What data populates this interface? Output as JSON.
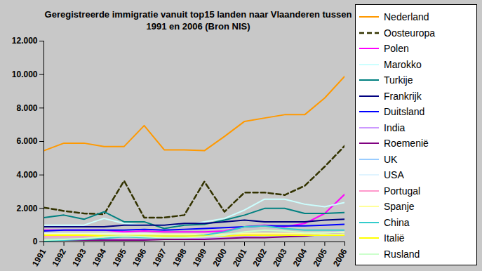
{
  "chart_data": {
    "type": "line",
    "title": "Geregistreerde immigratie vanuit top15 landen naar Vlaanderen tussen 1991 en 2006 (Bron NIS)",
    "x": [
      1991,
      1992,
      1993,
      1994,
      1995,
      1996,
      1997,
      1998,
      1999,
      2000,
      2001,
      2002,
      2003,
      2004,
      2005,
      2006
    ],
    "xlim": [
      1991,
      2006
    ],
    "xticks": [
      1991,
      1992,
      1993,
      1994,
      1995,
      1996,
      1997,
      1998,
      1999,
      2000,
      2001,
      2002,
      2003,
      2004,
      2005,
      2006
    ],
    "ylim": [
      0,
      12000
    ],
    "yticks": [
      0,
      {
        "value": 2000,
        "label": "2.000"
      },
      {
        "value": 4000,
        "label": "4.000"
      },
      {
        "value": 6000,
        "label": "6.000"
      },
      {
        "value": 8000,
        "label": "8.000"
      },
      {
        "value": 10000,
        "label": "10.000"
      },
      {
        "value": 12000,
        "label": "12.000"
      }
    ],
    "grid": false,
    "legend": "right",
    "series": [
      {
        "name": "Nederland",
        "color": "#ff9900",
        "line_style": "solid",
        "values": [
          5450,
          5900,
          5900,
          5700,
          5700,
          6950,
          5500,
          5500,
          5450,
          6300,
          7200,
          7400,
          7600,
          7600,
          8600,
          9900
        ]
      },
      {
        "name": "Oosteuropa",
        "color": "#333300",
        "line_style": "dashed",
        "values": [
          2050,
          1850,
          1700,
          1650,
          3650,
          1450,
          1450,
          1600,
          3600,
          1800,
          2950,
          2950,
          2800,
          3350,
          4500,
          5750
        ]
      },
      {
        "name": "Polen",
        "color": "#ff00ff",
        "line_style": "solid",
        "values": [
          700,
          700,
          700,
          700,
          600,
          650,
          600,
          600,
          600,
          650,
          900,
          1000,
          900,
          1100,
          1700,
          2850
        ]
      },
      {
        "name": "Marokko",
        "color": "#ccffff",
        "line_style": "solid",
        "values": [
          1000,
          1000,
          1000,
          1400,
          1100,
          1000,
          1000,
          1000,
          1200,
          1400,
          1900,
          2550,
          2550,
          2250,
          2100,
          2350
        ]
      },
      {
        "name": "Turkije",
        "color": "#008080",
        "line_style": "solid",
        "values": [
          1450,
          1600,
          1350,
          1800,
          1200,
          1200,
          800,
          1000,
          1050,
          1300,
          1600,
          2000,
          2000,
          1700,
          1700,
          1750
        ]
      },
      {
        "name": "Frankrijk",
        "color": "#000080",
        "line_style": "solid",
        "values": [
          900,
          900,
          900,
          900,
          1000,
          1000,
          1000,
          1100,
          1100,
          1200,
          1300,
          1200,
          1200,
          1200,
          1300,
          1350
        ]
      },
      {
        "name": "Duitsland",
        "color": "#0000ff",
        "line_style": "solid",
        "values": [
          650,
          700,
          700,
          700,
          700,
          750,
          700,
          750,
          800,
          850,
          900,
          950,
          950,
          950,
          1000,
          1050
        ]
      },
      {
        "name": "India",
        "color": "#cc99ff",
        "line_style": "solid",
        "values": [
          100,
          100,
          100,
          150,
          150,
          150,
          150,
          200,
          200,
          250,
          350,
          400,
          400,
          450,
          550,
          650
        ]
      },
      {
        "name": "Roemenië",
        "color": "#800080",
        "line_style": "solid",
        "values": [
          100,
          100,
          100,
          100,
          100,
          100,
          150,
          150,
          150,
          200,
          250,
          250,
          300,
          350,
          450,
          550
        ]
      },
      {
        "name": "UK",
        "color": "#99ccff",
        "line_style": "solid",
        "values": [
          400,
          400,
          400,
          400,
          400,
          400,
          400,
          400,
          400,
          450,
          450,
          450,
          500,
          500,
          550,
          550
        ]
      },
      {
        "name": "USA",
        "color": "#e0f4ff",
        "line_style": "solid",
        "values": [
          500,
          500,
          500,
          500,
          500,
          500,
          450,
          450,
          450,
          450,
          450,
          400,
          400,
          400,
          450,
          450
        ]
      },
      {
        "name": "Portugal",
        "color": "#ff99cc",
        "line_style": "solid",
        "values": [
          300,
          300,
          300,
          300,
          300,
          300,
          300,
          300,
          350,
          400,
          450,
          450,
          500,
          500,
          550,
          600
        ]
      },
      {
        "name": "Spanje",
        "color": "#ffff99",
        "line_style": "solid",
        "values": [
          450,
          450,
          450,
          450,
          450,
          450,
          450,
          450,
          450,
          450,
          500,
          500,
          500,
          500,
          550,
          550
        ]
      },
      {
        "name": "China",
        "color": "#33cccc",
        "line_style": "solid",
        "values": [
          50,
          100,
          150,
          200,
          300,
          250,
          250,
          300,
          400,
          600,
          900,
          950,
          800,
          700,
          700,
          700
        ]
      },
      {
        "name": "Italië",
        "color": "#ffff00",
        "line_style": "solid",
        "values": [
          400,
          400,
          400,
          350,
          350,
          350,
          350,
          350,
          350,
          350,
          400,
          400,
          400,
          400,
          400,
          400
        ]
      },
      {
        "name": "Rusland",
        "color": "#ccffcc",
        "line_style": "solid",
        "values": [
          100,
          150,
          200,
          300,
          350,
          300,
          250,
          250,
          300,
          400,
          600,
          700,
          650,
          550,
          550,
          600
        ]
      }
    ]
  }
}
